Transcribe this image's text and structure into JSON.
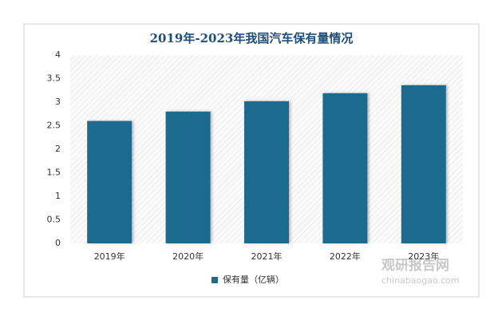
{
  "chart_data": {
    "type": "bar",
    "title": "2019年-2023年我国汽车保有量情况",
    "categories": [
      "2019年",
      "2020年",
      "2021年",
      "2022年",
      "2023年"
    ],
    "series": [
      {
        "name": "保有量（亿辆）",
        "color": "#1f6b8e",
        "values": [
          2.6,
          2.8,
          3.02,
          3.19,
          3.36
        ]
      }
    ],
    "ylim": [
      0,
      4
    ],
    "yticks": [
      0,
      0.5,
      1,
      1.5,
      2,
      2.5,
      3,
      3.5,
      4
    ],
    "grid": false,
    "legend": "bottom",
    "watermark": {
      "name": "观研报告网",
      "url": "chinabaogao.com"
    }
  }
}
